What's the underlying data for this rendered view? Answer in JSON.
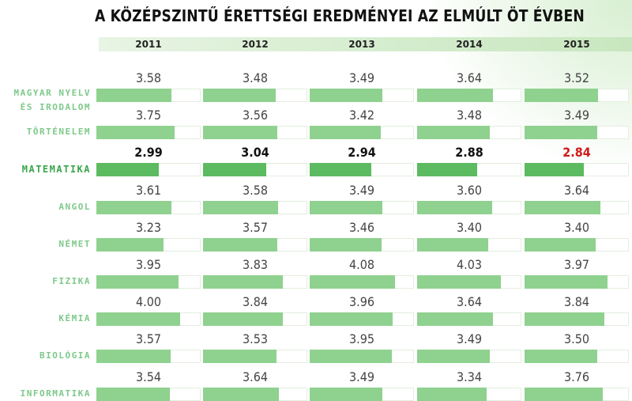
{
  "title": "A KÖZÉPSZINTŰ ÉRETTSÉGI EREDMÉNYEI AZ ELMÚLT ÖT ÉVBEN",
  "colors": {
    "bar": "#8fd18f",
    "bar_highlight": "#5cba60",
    "label": "#7ec98a",
    "label_highlight": "#3aa64b",
    "value_red": "#d11a1a"
  },
  "chart_data": {
    "type": "bar",
    "title": "A KÖZÉPSZINTŰ ÉRETTSÉGI EREDMÉNYEI AZ ELMÚLT ÖT ÉVBEN",
    "categories": [
      "2011",
      "2012",
      "2013",
      "2014",
      "2015"
    ],
    "scale_max": 5,
    "highlight_subject": "MATEMATIKA",
    "red_value": {
      "subject": "MATEMATIKA",
      "year": "2015"
    },
    "series": [
      {
        "name": "MAGYAR NYELV ÉS IRODALOM",
        "label_lines": [
          "MAGYAR NYELV",
          "ÉS IRODALOM"
        ],
        "values": [
          "3.58",
          "3.48",
          "3.49",
          "3.64",
          "3.52"
        ]
      },
      {
        "name": "TÖRTÉNELEM",
        "label_lines": [
          "TÖRTÉNELEM"
        ],
        "values": [
          "3.75",
          "3.56",
          "3.42",
          "3.48",
          "3.49"
        ]
      },
      {
        "name": "MATEMATIKA",
        "label_lines": [
          "MATEMATIKA"
        ],
        "values": [
          "2.99",
          "3.04",
          "2.94",
          "2.88",
          "2.84"
        ]
      },
      {
        "name": "ANGOL",
        "label_lines": [
          "ANGOL"
        ],
        "values": [
          "3.61",
          "3.58",
          "3.49",
          "3.60",
          "3.64"
        ]
      },
      {
        "name": "NÉMET",
        "label_lines": [
          "NÉMET"
        ],
        "values": [
          "3.23",
          "3.57",
          "3.46",
          "3.40",
          "3.40"
        ]
      },
      {
        "name": "FIZIKA",
        "label_lines": [
          "FIZIKA"
        ],
        "values": [
          "3.95",
          "3.83",
          "4.08",
          "4.03",
          "3.97"
        ]
      },
      {
        "name": "KÉMIA",
        "label_lines": [
          "KÉMIA"
        ],
        "values": [
          "4.00",
          "3.84",
          "3.96",
          "3.64",
          "3.84"
        ]
      },
      {
        "name": "BIOLÓGIA",
        "label_lines": [
          "BIOLÓGIA"
        ],
        "values": [
          "3.57",
          "3.53",
          "3.95",
          "3.49",
          "3.50"
        ]
      },
      {
        "name": "INFORMATIKA",
        "label_lines": [
          "INFORMATIKA"
        ],
        "values": [
          "3.54",
          "3.64",
          "3.49",
          "3.34",
          "3.76"
        ]
      }
    ]
  }
}
